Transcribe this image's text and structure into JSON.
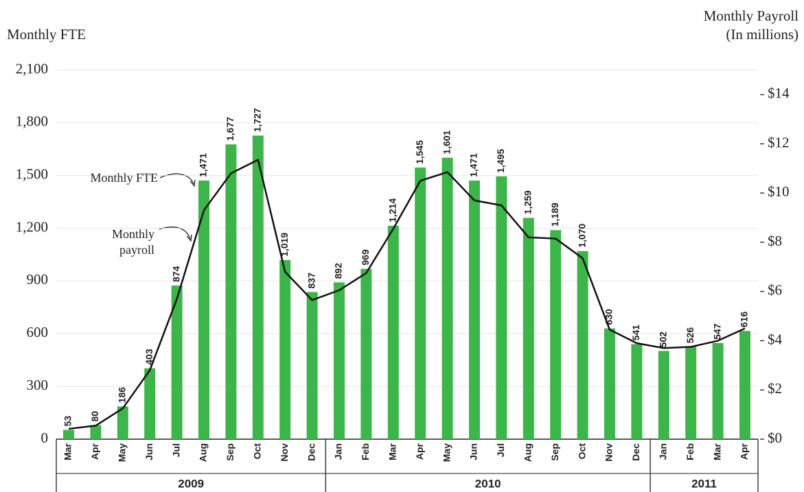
{
  "chart_data": {
    "type": "bar-line",
    "ylabel": "Monthly FTE",
    "y2label": [
      "Monthly Payroll",
      "(In millions)"
    ],
    "categories": [
      "Mar",
      "Apr",
      "May",
      "Jun",
      "Jul",
      "Aug",
      "Sep",
      "Oct",
      "Nov",
      "Dec",
      "Jan",
      "Feb",
      "Mar",
      "Apr",
      "May",
      "Jun",
      "Jul",
      "Aug",
      "Sep",
      "Oct",
      "Nov",
      "Dec",
      "Jan",
      "Feb",
      "Mar",
      "Apr"
    ],
    "groups": [
      {
        "label": "2009",
        "count": 10
      },
      {
        "label": "2010",
        "count": 12
      },
      {
        "label": "2011",
        "count": 4
      }
    ],
    "series": [
      {
        "name": "Monthly FTE",
        "type": "bar",
        "color": "#3cb54a",
        "values": [
          53,
          80,
          186,
          403,
          874,
          1471,
          1677,
          1727,
          1019,
          837,
          892,
          969,
          1214,
          1545,
          1601,
          1471,
          1495,
          1259,
          1189,
          1070,
          630,
          541,
          502,
          526,
          547,
          616
        ],
        "value_labels": [
          "53",
          "80",
          "186",
          "403",
          "874",
          "1,471",
          "1,677",
          "1,727",
          "1,019",
          "837",
          "892",
          "969",
          "1,214",
          "1,545",
          "1,601",
          "1,471",
          "1,495",
          "1,259",
          "1,189",
          "1,070",
          "630",
          "541",
          "502",
          "526",
          "547",
          "616"
        ]
      },
      {
        "name": "Monthly payroll",
        "type": "line",
        "axis": "y2",
        "color": "#111111",
        "values": [
          0.42,
          0.55,
          1.25,
          2.8,
          5.7,
          9.3,
          10.8,
          11.35,
          6.8,
          5.65,
          6.05,
          6.75,
          8.55,
          10.5,
          10.85,
          9.7,
          9.5,
          8.2,
          8.15,
          7.35,
          4.45,
          3.9,
          3.7,
          3.75,
          4.0,
          4.5
        ]
      }
    ],
    "ylim": [
      0,
      2100
    ],
    "yticks": [
      0,
      300,
      600,
      900,
      {
        "value": 1200,
        "label": "1,200"
      },
      {
        "value": 1500,
        "label": "1,500"
      },
      {
        "value": 1800,
        "label": "1,800"
      },
      {
        "value": 2100,
        "label": "2,100"
      }
    ],
    "y2lim": [
      0,
      15
    ],
    "y2ticks": [
      {
        "value": 0,
        "label": "$0"
      },
      {
        "value": 2,
        "label": "$2"
      },
      {
        "value": 4,
        "label": "$4"
      },
      {
        "value": 6,
        "label": "$6"
      },
      {
        "value": 8,
        "label": "$8"
      },
      {
        "value": 10,
        "label": "$10"
      },
      {
        "value": 12,
        "label": "$12"
      },
      {
        "value": 14,
        "label": "$14"
      }
    ],
    "grid": true
  }
}
